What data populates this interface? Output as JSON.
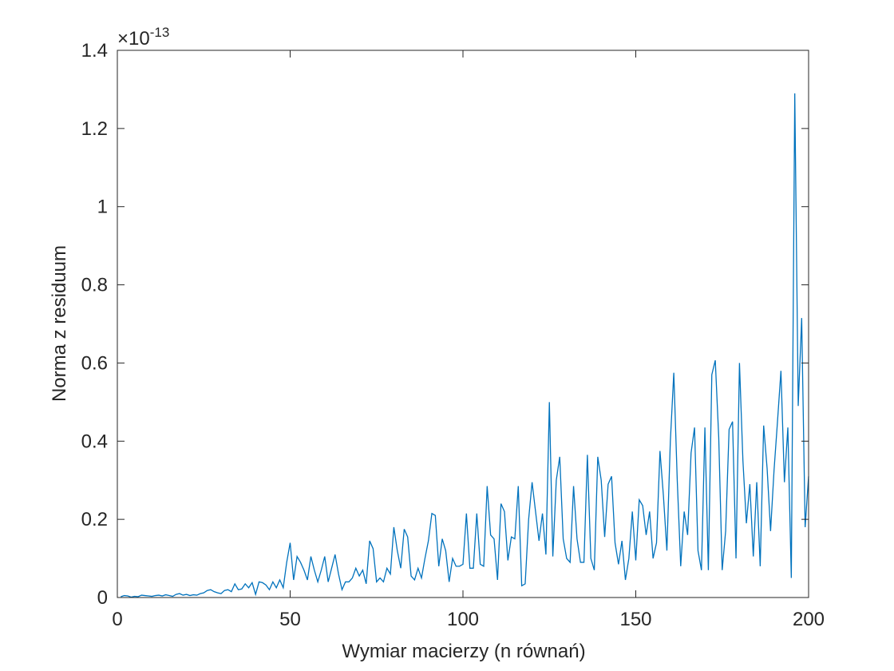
{
  "chart_data": {
    "type": "line",
    "xlabel": "Wymiar macierzy (n równań)",
    "ylabel": "Norma z residuum",
    "y_exponent_label": {
      "base": "×10",
      "exponent": "-13"
    },
    "x": [
      1,
      2,
      3,
      4,
      5,
      6,
      7,
      8,
      9,
      10,
      11,
      12,
      13,
      14,
      15,
      16,
      17,
      18,
      19,
      20,
      21,
      22,
      23,
      24,
      25,
      26,
      27,
      28,
      29,
      30,
      31,
      32,
      33,
      34,
      35,
      36,
      37,
      38,
      39,
      40,
      41,
      42,
      43,
      44,
      45,
      46,
      47,
      48,
      49,
      50,
      51,
      52,
      53,
      54,
      55,
      56,
      57,
      58,
      59,
      60,
      61,
      62,
      63,
      64,
      65,
      66,
      67,
      68,
      69,
      70,
      71,
      72,
      73,
      74,
      75,
      76,
      77,
      78,
      79,
      80,
      81,
      82,
      83,
      84,
      85,
      86,
      87,
      88,
      89,
      90,
      91,
      92,
      93,
      94,
      95,
      96,
      97,
      98,
      99,
      100,
      101,
      102,
      103,
      104,
      105,
      106,
      107,
      108,
      109,
      110,
      111,
      112,
      113,
      114,
      115,
      116,
      117,
      118,
      119,
      120,
      121,
      122,
      123,
      124,
      125,
      126,
      127,
      128,
      129,
      130,
      131,
      132,
      133,
      134,
      135,
      136,
      137,
      138,
      139,
      140,
      141,
      142,
      143,
      144,
      145,
      146,
      147,
      148,
      149,
      150,
      151,
      152,
      153,
      154,
      155,
      156,
      157,
      158,
      159,
      160,
      161,
      162,
      163,
      164,
      165,
      166,
      167,
      168,
      169,
      170,
      171,
      172,
      173,
      174,
      175,
      176,
      177,
      178,
      179,
      180,
      181,
      182,
      183,
      184,
      185,
      186,
      187,
      188,
      189,
      190,
      191,
      192,
      193,
      194,
      195,
      196,
      197,
      198,
      199,
      200
    ],
    "series": [
      {
        "color": "#0072BD",
        "values": [
          0.002,
          0.005,
          0.004,
          0.001,
          0.003,
          0.002,
          0.006,
          0.005,
          0.004,
          0.003,
          0.005,
          0.006,
          0.004,
          0.007,
          0.005,
          0.003,
          0.008,
          0.01,
          0.006,
          0.008,
          0.005,
          0.007,
          0.006,
          0.01,
          0.012,
          0.018,
          0.02,
          0.015,
          0.012,
          0.01,
          0.018,
          0.02,
          0.015,
          0.035,
          0.02,
          0.022,
          0.035,
          0.025,
          0.038,
          0.008,
          0.04,
          0.038,
          0.032,
          0.02,
          0.04,
          0.025,
          0.045,
          0.025,
          0.09,
          0.14,
          0.045,
          0.105,
          0.09,
          0.07,
          0.045,
          0.105,
          0.07,
          0.04,
          0.07,
          0.105,
          0.04,
          0.075,
          0.11,
          0.06,
          0.02,
          0.04,
          0.04,
          0.05,
          0.075,
          0.055,
          0.07,
          0.035,
          0.145,
          0.125,
          0.04,
          0.05,
          0.04,
          0.075,
          0.06,
          0.18,
          0.12,
          0.075,
          0.175,
          0.155,
          0.055,
          0.045,
          0.075,
          0.05,
          0.1,
          0.145,
          0.215,
          0.21,
          0.08,
          0.15,
          0.12,
          0.04,
          0.1,
          0.08,
          0.08,
          0.085,
          0.215,
          0.075,
          0.075,
          0.215,
          0.085,
          0.08,
          0.285,
          0.16,
          0.15,
          0.045,
          0.24,
          0.22,
          0.095,
          0.155,
          0.15,
          0.285,
          0.03,
          0.035,
          0.2,
          0.295,
          0.22,
          0.145,
          0.215,
          0.11,
          0.5,
          0.105,
          0.3,
          0.36,
          0.15,
          0.1,
          0.09,
          0.285,
          0.15,
          0.09,
          0.09,
          0.365,
          0.1,
          0.07,
          0.36,
          0.3,
          0.155,
          0.29,
          0.31,
          0.14,
          0.085,
          0.145,
          0.045,
          0.1,
          0.22,
          0.095,
          0.25,
          0.235,
          0.16,
          0.22,
          0.1,
          0.14,
          0.375,
          0.26,
          0.12,
          0.4,
          0.575,
          0.3,
          0.08,
          0.22,
          0.16,
          0.37,
          0.435,
          0.12,
          0.07,
          0.435,
          0.07,
          0.57,
          0.607,
          0.41,
          0.07,
          0.17,
          0.43,
          0.45,
          0.1,
          0.6,
          0.35,
          0.19,
          0.29,
          0.105,
          0.295,
          0.08,
          0.44,
          0.33,
          0.17,
          0.325,
          0.45,
          0.58,
          0.295,
          0.435,
          0.05,
          1.29,
          0.49,
          0.715,
          0.18,
          0.31
        ]
      }
    ],
    "xlim": [
      0,
      200
    ],
    "xticks": [
      0,
      50,
      100,
      150,
      200
    ],
    "ylim": [
      0,
      1.4
    ],
    "yticks": [
      0,
      0.2,
      0.4,
      0.6,
      0.8,
      1,
      1.2,
      1.4
    ]
  }
}
